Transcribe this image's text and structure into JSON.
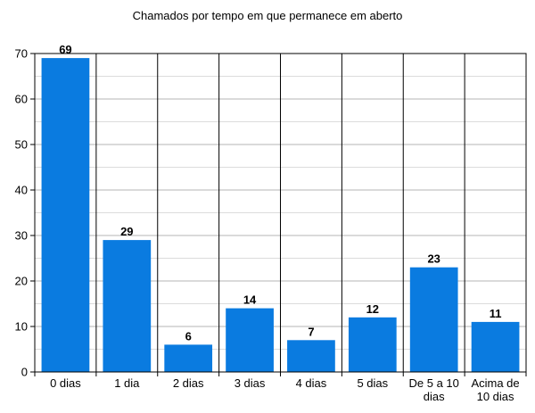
{
  "chart_data": {
    "type": "bar",
    "title": "Chamados por tempo em que permanece em aberto",
    "xlabel": "",
    "ylabel": "",
    "categories": [
      "0 dias",
      "1 dia",
      "2 dias",
      "3 dias",
      "4 dias",
      "5 dias",
      "De 5 a 10 dias",
      "Acima de 10 dias"
    ],
    "category_lines": [
      [
        "0 dias"
      ],
      [
        "1 dia"
      ],
      [
        "2 dias"
      ],
      [
        "3 dias"
      ],
      [
        "4 dias"
      ],
      [
        "5 dias"
      ],
      [
        "De 5 a 10",
        "dias"
      ],
      [
        "Acima de",
        "10 dias"
      ]
    ],
    "values": [
      69,
      29,
      6,
      14,
      7,
      12,
      23,
      11
    ],
    "ylim": [
      0,
      70
    ],
    "yticks": [
      0,
      10,
      20,
      30,
      40,
      50,
      60,
      70
    ],
    "grid": true,
    "bar_color": "#0a7be0",
    "grid_color": "#b4b4b4",
    "minor_grid_color": "#dcdcdc",
    "legend": "none"
  }
}
